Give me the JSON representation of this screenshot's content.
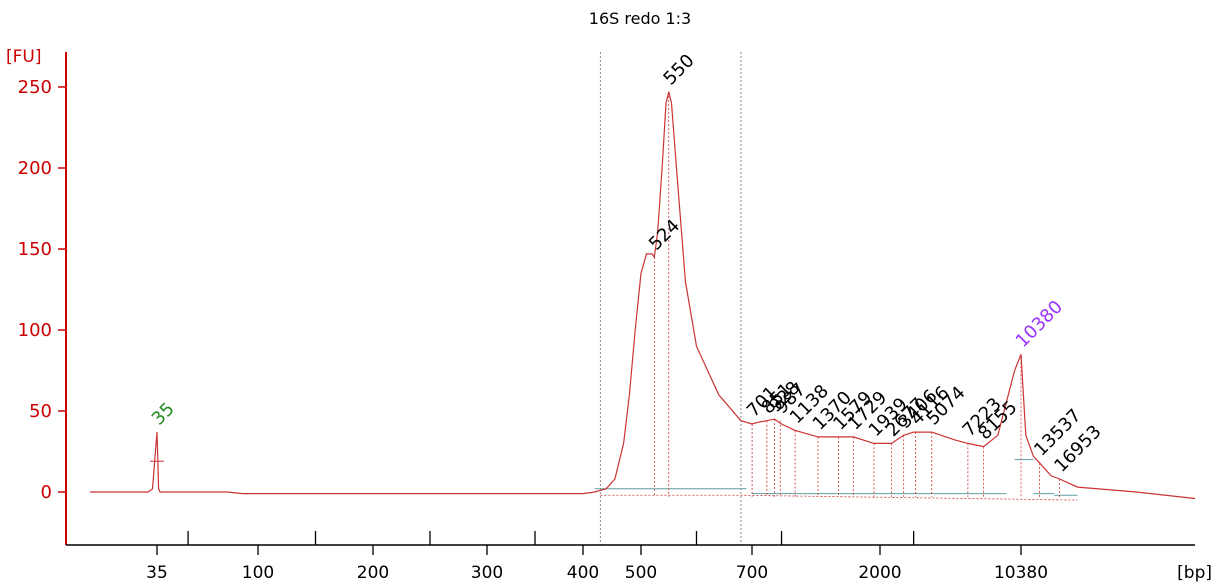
{
  "chart_data": {
    "type": "line",
    "title": "16S redo 1:3",
    "ylabel": "[FU]",
    "xlabel": "[bp]",
    "ylim": [
      -30,
      270
    ],
    "yticks": [
      0,
      50,
      100,
      150,
      200,
      250
    ],
    "xtick_labels": [
      "35",
      "100",
      "200",
      "300",
      "400",
      "500",
      "700",
      "2000",
      "10380"
    ],
    "x_scale": "nonlinear (migration-time based)",
    "series": [
      {
        "points": [
          [
            20,
            0
          ],
          [
            33,
            0
          ],
          [
            34,
            2
          ],
          [
            34.5,
            20
          ],
          [
            35,
            37
          ],
          [
            35.5,
            20
          ],
          [
            36,
            2
          ],
          [
            37,
            0
          ],
          [
            80,
            0
          ],
          [
            90,
            -1
          ],
          [
            95,
            -1
          ],
          [
            100,
            -1
          ],
          [
            200,
            -1
          ],
          [
            300,
            -1
          ],
          [
            400,
            -1
          ],
          [
            420,
            0
          ],
          [
            440,
            2
          ],
          [
            455,
            8
          ],
          [
            470,
            30
          ],
          [
            480,
            60
          ],
          [
            490,
            100
          ],
          [
            500,
            135
          ],
          [
            510,
            147
          ],
          [
            520,
            147
          ],
          [
            524,
            145
          ],
          [
            530,
            160
          ],
          [
            538,
            200
          ],
          [
            545,
            240
          ],
          [
            550,
            247
          ],
          [
            555,
            240
          ],
          [
            565,
            195
          ],
          [
            580,
            130
          ],
          [
            600,
            90
          ],
          [
            640,
            60
          ],
          [
            680,
            44
          ],
          [
            701,
            42
          ],
          [
            760,
            43
          ],
          [
            851,
            44
          ],
          [
            928,
            45
          ],
          [
            1000,
            42
          ],
          [
            1138,
            38
          ],
          [
            1370,
            34
          ],
          [
            1729,
            34
          ],
          [
            1939,
            30
          ],
          [
            2677,
            30
          ],
          [
            3406,
            35
          ],
          [
            4000,
            37
          ],
          [
            5074,
            37
          ],
          [
            6500,
            32
          ],
          [
            7223,
            30
          ],
          [
            8155,
            28
          ],
          [
            9000,
            35
          ],
          [
            9500,
            55
          ],
          [
            10000,
            75
          ],
          [
            10380,
            85
          ],
          [
            10700,
            65
          ],
          [
            11200,
            35
          ],
          [
            12500,
            22
          ],
          [
            13537,
            18
          ],
          [
            15500,
            10
          ],
          [
            16953,
            8
          ],
          [
            20000,
            3
          ],
          [
            30000,
            0
          ],
          [
            40000,
            -4
          ]
        ]
      }
    ],
    "peak_labels": [
      {
        "label": "35",
        "x": 35,
        "y": 37,
        "color": "#228b22"
      },
      {
        "label": "524",
        "x": 524,
        "y": 145,
        "color": "#000000"
      },
      {
        "label": "550",
        "x": 550,
        "y": 247,
        "color": "#000000"
      },
      {
        "label": "701",
        "x": 701,
        "y": 42,
        "color": "#000000"
      },
      {
        "label": "851",
        "x": 851,
        "y": 44,
        "color": "#000000"
      },
      {
        "label": "928",
        "x": 928,
        "y": 45,
        "color": "#000000"
      },
      {
        "label": "987",
        "x": 987,
        "y": 44,
        "color": "#000000"
      },
      {
        "label": "1138",
        "x": 1138,
        "y": 38,
        "color": "#000000"
      },
      {
        "label": "1370",
        "x": 1370,
        "y": 34,
        "color": "#000000"
      },
      {
        "label": "1579",
        "x": 1579,
        "y": 34,
        "color": "#000000"
      },
      {
        "label": "1729",
        "x": 1729,
        "y": 34,
        "color": "#000000"
      },
      {
        "label": "1939",
        "x": 1939,
        "y": 30,
        "color": "#000000"
      },
      {
        "label": "2677",
        "x": 2677,
        "y": 30,
        "color": "#000000"
      },
      {
        "label": "3406",
        "x": 3406,
        "y": 35,
        "color": "#000000"
      },
      {
        "label": "4116",
        "x": 4116,
        "y": 37,
        "color": "#000000"
      },
      {
        "label": "5074",
        "x": 5074,
        "y": 37,
        "color": "#000000"
      },
      {
        "label": "7223",
        "x": 7223,
        "y": 30,
        "color": "#000000"
      },
      {
        "label": "8155",
        "x": 8155,
        "y": 28,
        "color": "#000000"
      },
      {
        "label": "10380",
        "x": 10380,
        "y": 85,
        "color": "#9933ff"
      },
      {
        "label": "13537",
        "x": 13537,
        "y": 18,
        "color": "#000000"
      },
      {
        "label": "16953",
        "x": 16953,
        "y": 8,
        "color": "#000000"
      }
    ],
    "region_markers_bp": [
      430,
      680
    ],
    "grid": false,
    "legend": "none"
  },
  "colors": {
    "trace": "#cc3333",
    "axis": "#cc0000",
    "baseline": "#5f9ea0",
    "region": "#888888"
  }
}
